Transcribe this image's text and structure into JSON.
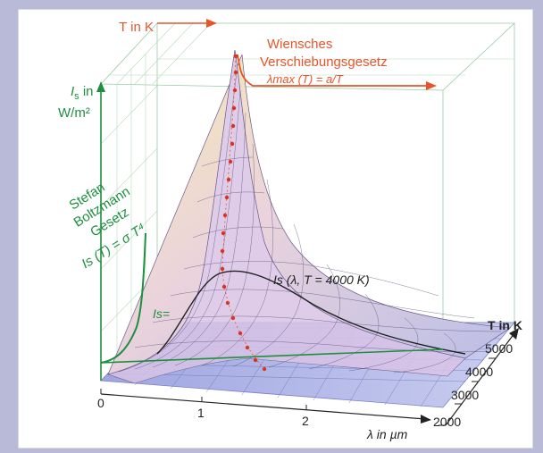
{
  "labels": {
    "top_t_axis": "T in K",
    "is_axis_line1": "I",
    "is_axis_sub": "s",
    "is_axis_line2": " in",
    "is_axis_unit": "W/m²",
    "wien_line1": "Wiensches",
    "wien_line2": "Verschiebungsgesetz",
    "wien_formula": "λmax (T) = a/T",
    "stefan_line1": "Stefan",
    "stefan_line2": "Boltzmann",
    "stefan_line3": "Gesetz",
    "stefan_formula": "Is (T) = σ T⁴",
    "is_eq_fragment": "Is=",
    "curve_label": "Is (λ, T = 4000 K)",
    "right_t_axis": "T in K",
    "lambda_axis": "λ in µm"
  },
  "t_ticks": [
    "5000",
    "4000",
    "3000",
    "2000"
  ],
  "lambda_ticks": [
    "0",
    "1",
    "2"
  ],
  "colors": {
    "background": "#b9bad8",
    "green": "#1e8f3e",
    "orange": "#e8542a",
    "red_point": "#d8321e"
  }
}
